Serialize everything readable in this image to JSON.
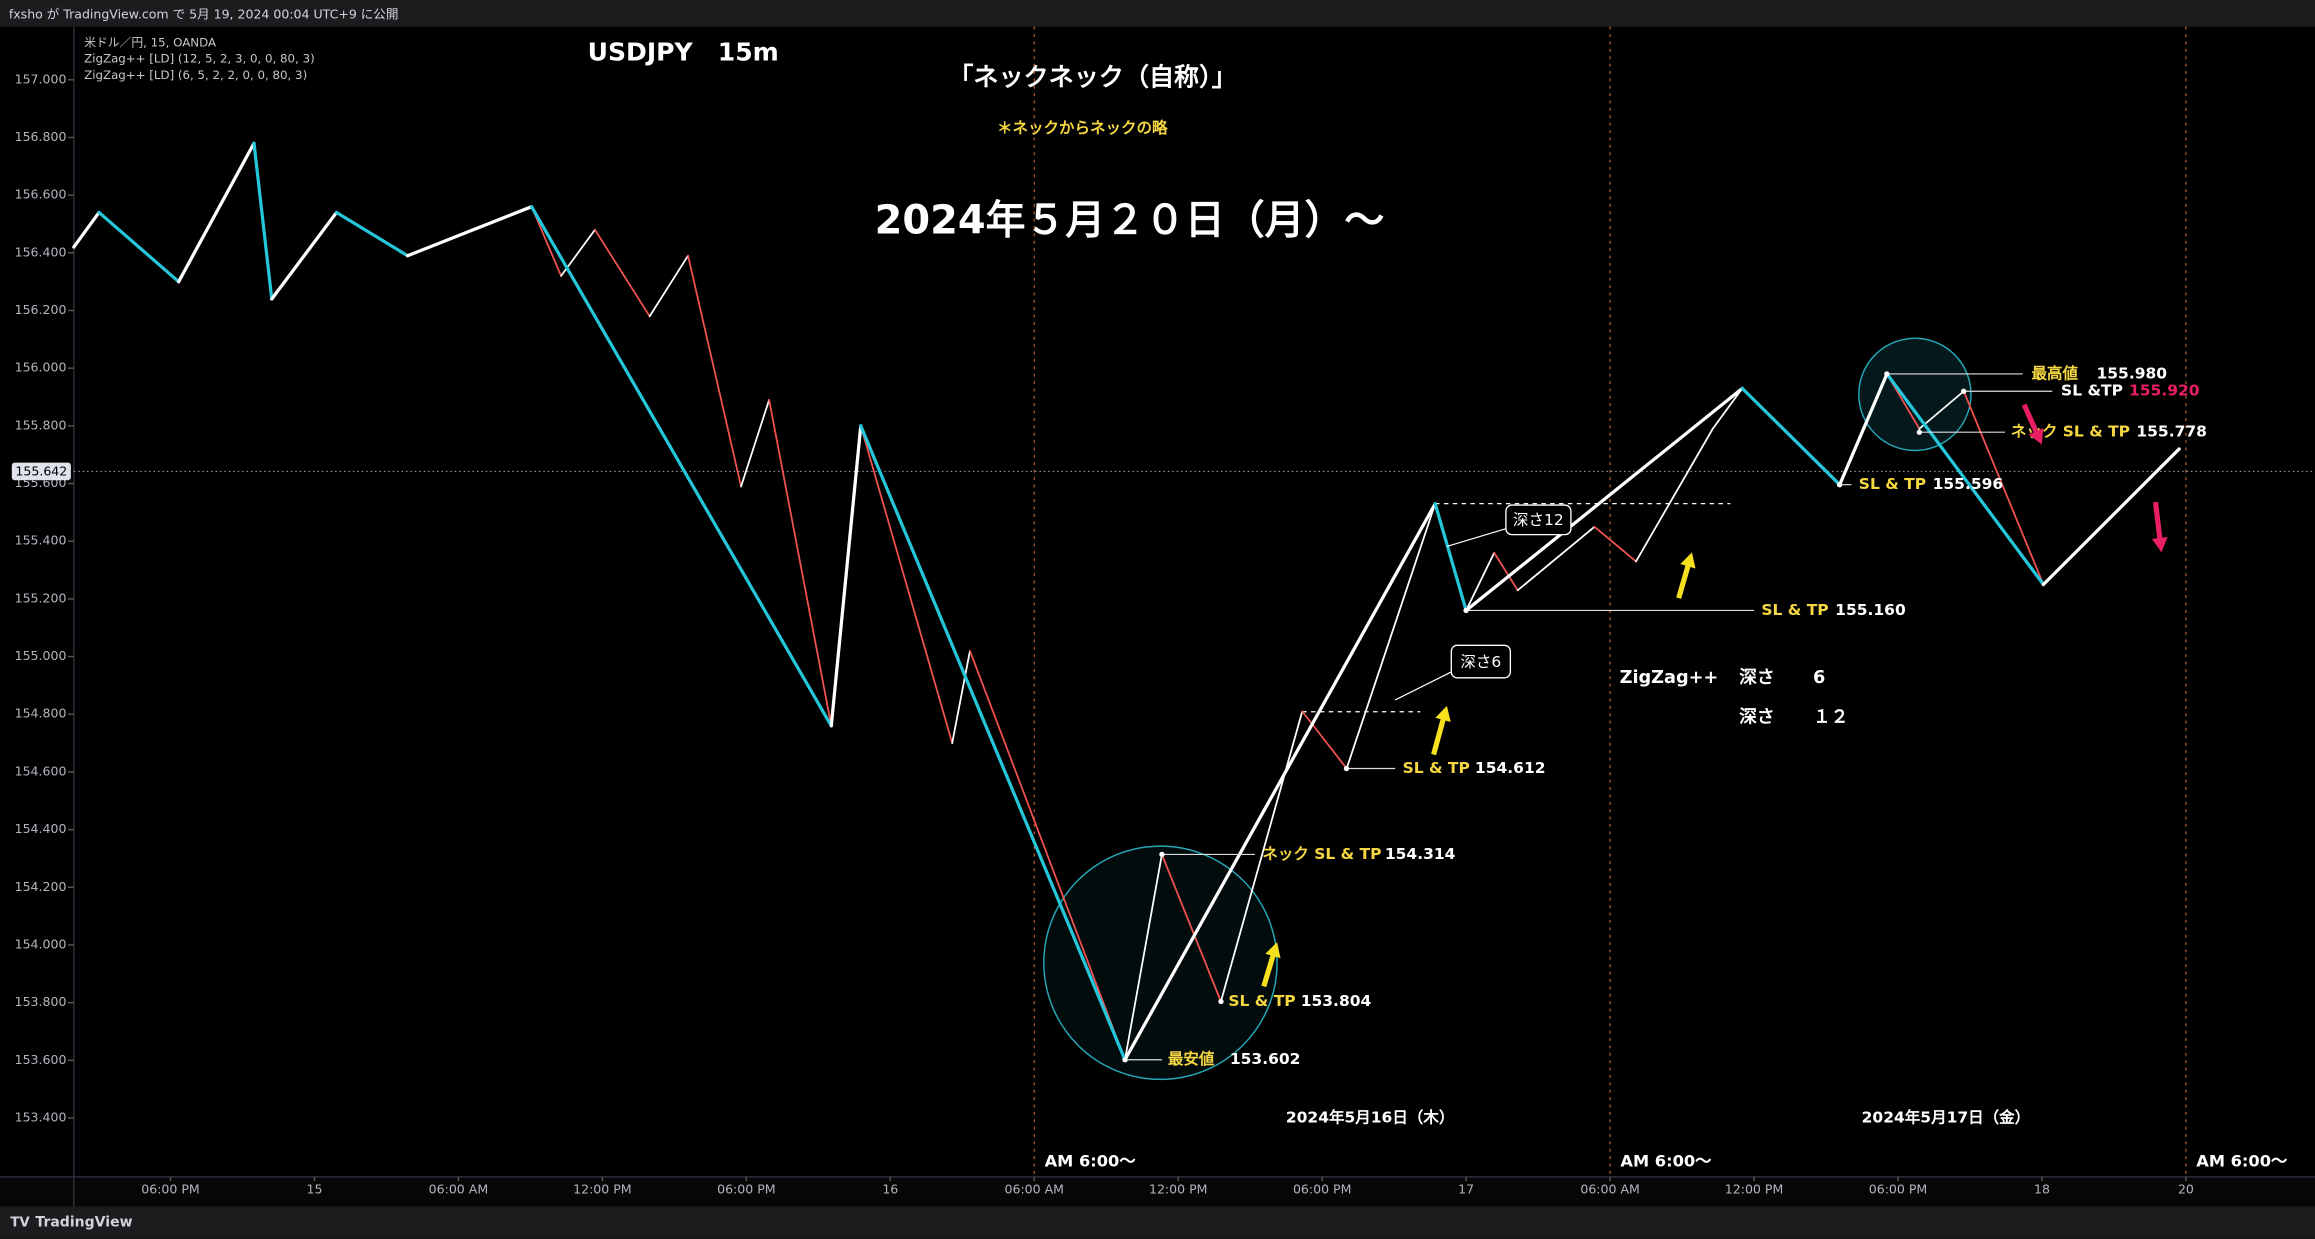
{
  "header": "fxsho が TradingView.com で 5月 19, 2024 00:04 UTC+9 に公開",
  "footer": "TradingView",
  "chart_data": {
    "type": "line",
    "symbol": "米ドル／円, 15, OANDA",
    "title": "USDJPY　15m",
    "subtitle": "「ネックネック（自称）」",
    "note": "＊ネックからネックの略",
    "headline": "2024年５月２０日（月）〜",
    "xlim": [
      -10.03,
      83.38
    ],
    "ylim": [
      153.196,
      157.184
    ],
    "xticks": [
      {
        "value": -6,
        "label": "06:00 PM"
      },
      {
        "value": 0,
        "label": "15"
      },
      {
        "value": 6,
        "label": "06:00 AM"
      },
      {
        "value": 12,
        "label": "12:00 PM"
      },
      {
        "value": 18,
        "label": "06:00 PM"
      },
      {
        "value": 24,
        "label": "16"
      },
      {
        "value": 30,
        "label": "06:00 AM"
      },
      {
        "value": 36,
        "label": "12:00 PM"
      },
      {
        "value": 42,
        "label": "06:00 PM"
      },
      {
        "value": 48,
        "label": "17"
      },
      {
        "value": 54,
        "label": "06:00 AM"
      },
      {
        "value": 60,
        "label": "12:00 PM"
      },
      {
        "value": 66,
        "label": "06:00 PM"
      },
      {
        "value": 72,
        "label": "18"
      },
      {
        "value": 78,
        "label": "20"
      }
    ],
    "yticks": [
      {
        "value": 157,
        "label": "157.000"
      },
      {
        "value": 156.8,
        "label": "156.800"
      },
      {
        "value": 156.6,
        "label": "156.600"
      },
      {
        "value": 156.4,
        "label": "156.400"
      },
      {
        "value": 156.2,
        "label": "156.200"
      },
      {
        "value": 156,
        "label": "156.000"
      },
      {
        "value": 155.8,
        "label": "155.800"
      },
      {
        "value": 155.6,
        "label": "155.600"
      },
      {
        "value": 155.4,
        "label": "155.400"
      },
      {
        "value": 155.2,
        "label": "155.200"
      },
      {
        "value": 155,
        "label": "155.000"
      },
      {
        "value": 154.8,
        "label": "154.800"
      },
      {
        "value": 154.6,
        "label": "154.600"
      },
      {
        "value": 154.4,
        "label": "154.400"
      },
      {
        "value": 154.2,
        "label": "154.200"
      },
      {
        "value": 154,
        "label": "154.000"
      },
      {
        "value": 153.8,
        "label": "153.800"
      },
      {
        "value": 153.6,
        "label": "153.600"
      },
      {
        "value": 153.4,
        "label": "153.400"
      }
    ],
    "last_price": 155.642,
    "series": [
      {
        "name": "ZigZag++ [LD] (6, 5, 2, 2, 0, 0, 80, 3)",
        "color": "#ffffff",
        "down_color": "#f0524f",
        "x": [
          9.05,
          10.28,
          11.69,
          13.97,
          15.57,
          17.78,
          18.95,
          21.54,
          22.77,
          26.58,
          27.32,
          33.78,
          35.32,
          37.78,
          41.17,
          43.02,
          46.71,
          48.0,
          49.17,
          50.15,
          53.35,
          55.08,
          58.28,
          59.51,
          61.85,
          63.57,
          65.54,
          66.89,
          68.74,
          72.06,
          77.72
        ],
        "values": [
          156.56,
          156.32,
          156.48,
          156.18,
          156.39,
          155.59,
          155.89,
          154.76,
          155.8,
          154.7,
          155.02,
          153.602,
          154.314,
          153.804,
          154.81,
          154.612,
          155.53,
          155.16,
          155.36,
          155.23,
          155.45,
          155.33,
          155.79,
          155.93,
          155.74,
          155.596,
          155.98,
          155.79,
          155.92,
          155.25,
          155.72
        ]
      },
      {
        "name": "ZigZag++ [LD] (12, 5, 2, 3, 0, 0, 80, 3)",
        "color": "#ffffff",
        "down_color": "#26c6da",
        "x": [
          -10.03,
          -8.98,
          -5.66,
          -2.52,
          -1.78,
          0.92,
          3.88,
          9.05,
          21.54,
          22.77,
          33.78,
          46.71,
          48.0,
          59.51,
          63.57,
          65.54,
          72.06,
          77.72
        ],
        "values": [
          156.42,
          156.54,
          156.3,
          156.78,
          156.24,
          156.54,
          156.39,
          156.56,
          154.76,
          155.8,
          153.602,
          155.53,
          155.16,
          155.93,
          155.596,
          155.98,
          155.25,
          155.72
        ]
      }
    ],
    "session_lines": {
      "label": "AM 6:00〜",
      "x": [
        30,
        54,
        78
      ]
    },
    "date_labels": [
      "2024年5月16日（木）",
      "2024年5月17日（金）"
    ],
    "annotations": [
      {
        "text": "最安値",
        "value": 153.602
      },
      {
        "text": "SL & TP",
        "value": 153.804
      },
      {
        "text": "ネック SL & TP",
        "value": 154.314
      },
      {
        "text": "SL & TP",
        "value": 154.612
      },
      {
        "text": "SL & TP",
        "value": 155.16,
        "value_label": "155.160"
      },
      {
        "text": "SL & TP",
        "value": 155.596
      },
      {
        "text": "最高値",
        "value": 155.98,
        "value_label": "155.980"
      },
      {
        "text": "SL &TP",
        "value": 155.92,
        "value_label": "155.920"
      },
      {
        "text": "ネック SL & TP",
        "value": 155.778
      }
    ],
    "depth_boxes": [
      "深さ12",
      "深さ6"
    ],
    "depth_legend": {
      "title": "ZigZag++",
      "rows": [
        [
          "深さ",
          "6"
        ],
        [
          "深さ",
          "１２"
        ]
      ]
    }
  }
}
